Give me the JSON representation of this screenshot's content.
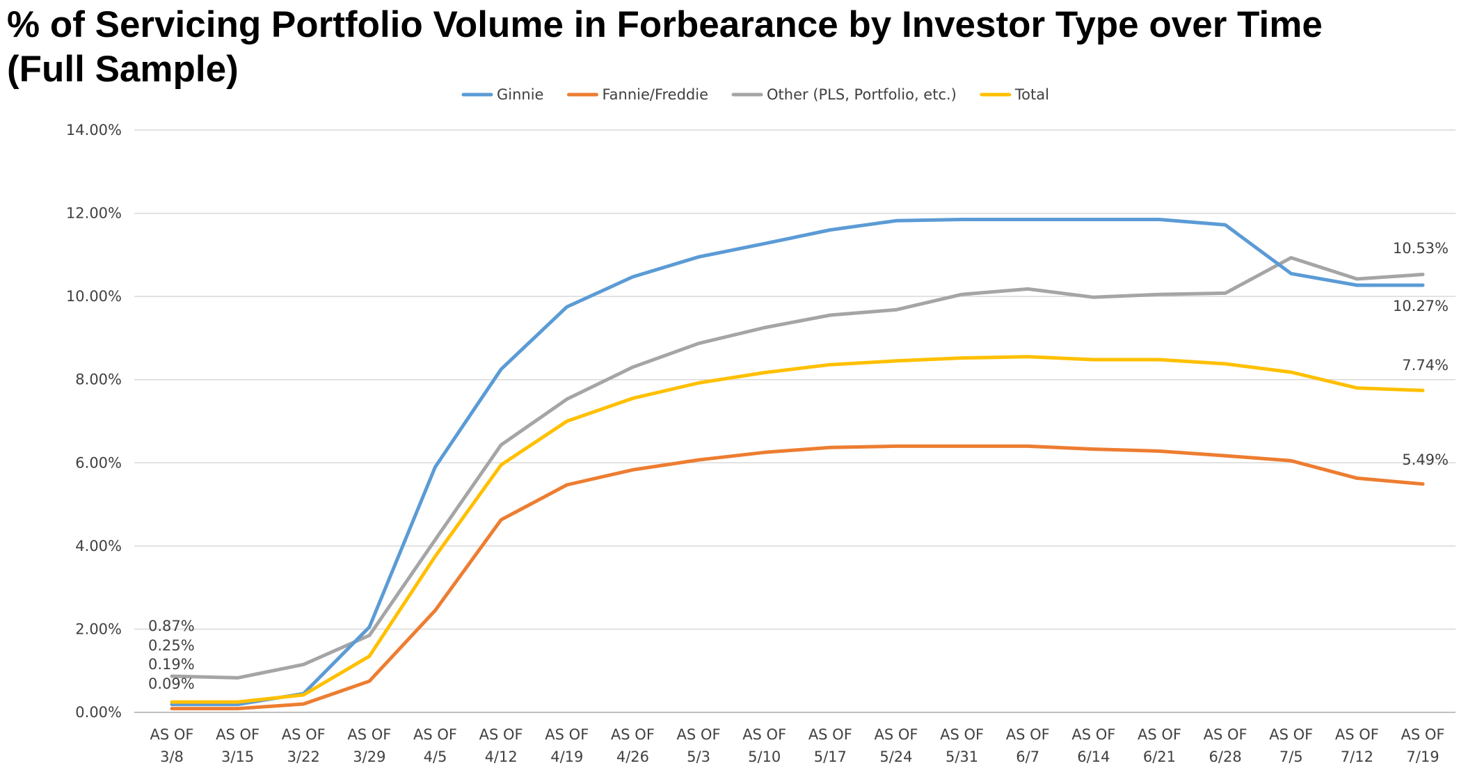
{
  "chart_title_line1": "% of Servicing Portfolio Volume in Forbearance by Investor Type over Time",
  "chart_title_line2": "(Full Sample)",
  "chart_data": {
    "type": "line",
    "title": "% of Servicing Portfolio Volume in Forbearance by Investor Type over Time (Full Sample)",
    "xlabel": "",
    "ylabel": "",
    "ylim": [
      0,
      14
    ],
    "y_ticks": [
      "0.00%",
      "2.00%",
      "4.00%",
      "6.00%",
      "8.00%",
      "10.00%",
      "12.00%",
      "14.00%"
    ],
    "grid": true,
    "legend_position": "top",
    "categories": [
      [
        "AS OF",
        "3/8"
      ],
      [
        "AS OF",
        "3/15"
      ],
      [
        "AS OF",
        "3/22"
      ],
      [
        "AS OF",
        "3/29"
      ],
      [
        "AS OF",
        "4/5"
      ],
      [
        "AS OF",
        "4/12"
      ],
      [
        "AS OF",
        "4/19"
      ],
      [
        "AS OF",
        "4/26"
      ],
      [
        "AS OF",
        "5/3"
      ],
      [
        "AS OF",
        "5/10"
      ],
      [
        "AS OF",
        "5/17"
      ],
      [
        "AS OF",
        "5/24"
      ],
      [
        "AS OF",
        "5/31"
      ],
      [
        "AS OF",
        "6/7"
      ],
      [
        "AS OF",
        "6/14"
      ],
      [
        "AS OF",
        "6/21"
      ],
      [
        "AS OF",
        "6/28"
      ],
      [
        "AS OF",
        "7/5"
      ],
      [
        "AS OF",
        "7/12"
      ],
      [
        "AS OF",
        "7/19"
      ]
    ],
    "series": [
      {
        "name": "Ginnie",
        "color": "#5B9BD5",
        "values": [
          0.19,
          0.19,
          0.45,
          2.05,
          5.9,
          8.25,
          9.75,
          10.47,
          10.95,
          11.27,
          11.6,
          11.82,
          11.85,
          11.85,
          11.85,
          11.85,
          11.72,
          10.55,
          10.27,
          10.27
        ]
      },
      {
        "name": "Fannie/Freddie",
        "color": "#ED7D31",
        "values": [
          0.09,
          0.09,
          0.2,
          0.75,
          2.45,
          4.63,
          5.47,
          5.83,
          6.07,
          6.25,
          6.37,
          6.4,
          6.4,
          6.4,
          6.33,
          6.28,
          6.17,
          6.05,
          5.63,
          5.49
        ]
      },
      {
        "name": "Other (PLS, Portfolio, etc.)",
        "color": "#A5A5A5",
        "values": [
          0.87,
          0.83,
          1.15,
          1.85,
          4.15,
          6.43,
          7.53,
          8.3,
          8.87,
          9.25,
          9.55,
          9.68,
          10.05,
          10.18,
          9.98,
          10.05,
          10.08,
          10.93,
          10.42,
          10.53
        ]
      },
      {
        "name": "Total",
        "color": "#FFC000",
        "values": [
          0.25,
          0.25,
          0.42,
          1.35,
          3.75,
          5.95,
          7.0,
          7.55,
          7.92,
          8.17,
          8.36,
          8.45,
          8.52,
          8.55,
          8.48,
          8.48,
          8.38,
          8.18,
          7.8,
          7.74
        ]
      }
    ],
    "data_labels": [
      {
        "text": "0.87%",
        "series": "Other (PLS, Portfolio, etc.)",
        "index": 0
      },
      {
        "text": "0.25%",
        "series": "Total",
        "index": 0
      },
      {
        "text": "0.19%",
        "series": "Ginnie",
        "index": 0
      },
      {
        "text": "0.09%",
        "series": "Fannie/Freddie",
        "index": 0
      },
      {
        "text": "10.53%",
        "series": "Other (PLS, Portfolio, etc.)",
        "index": 19
      },
      {
        "text": "10.27%",
        "series": "Ginnie",
        "index": 19
      },
      {
        "text": "7.74%",
        "series": "Total",
        "index": 19
      },
      {
        "text": "5.49%",
        "series": "Fannie/Freddie",
        "index": 19
      }
    ]
  }
}
